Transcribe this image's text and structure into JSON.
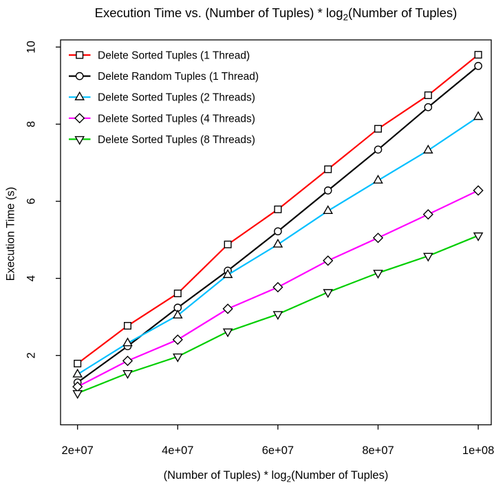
{
  "figure": {
    "title": {
      "pre": "Execution Time vs. (Number of Tuples) * log",
      "sub": "2",
      "post": "(Number of Tuples)"
    },
    "x_axis": {
      "label_pre": "(Number of Tuples) * log",
      "label_sub": "2",
      "label_post": "(Number of Tuples)",
      "tick_labels": [
        "2e+07",
        "4e+07",
        "6e+07",
        "8e+07",
        "1e+08"
      ],
      "tick_values": [
        20000000,
        40000000,
        60000000,
        80000000,
        100000000
      ]
    },
    "y_axis": {
      "label": "Execution Time (s)",
      "tick_labels": [
        "2",
        "4",
        "6",
        "8",
        "10"
      ],
      "tick_values": [
        2,
        4,
        6,
        8,
        10
      ]
    }
  },
  "chart_data": {
    "type": "line",
    "title": "Execution Time vs. (Number of Tuples) * log2(Number of Tuples)",
    "xlabel": "(Number of Tuples) * log2(Number of Tuples)",
    "ylabel": "Execution Time (s)",
    "xlim": [
      20000000,
      100000000
    ],
    "ylim": [
      1.0,
      10.0
    ],
    "grid": false,
    "legend_position": "top-left",
    "x": [
      20000000,
      30000000,
      40000000,
      50000000,
      60000000,
      70000000,
      80000000,
      90000000,
      100000000
    ],
    "series": [
      {
        "name": "Delete Sorted Tuples (1 Thread)",
        "color": "#ff0000",
        "marker": "square",
        "values": [
          1.79,
          2.77,
          3.61,
          4.88,
          5.79,
          6.83,
          7.88,
          8.75,
          9.8
        ]
      },
      {
        "name": "Delete Random Tuples (1 Thread)",
        "color": "#000000",
        "marker": "circle",
        "values": [
          1.3,
          2.24,
          3.24,
          4.2,
          5.22,
          6.28,
          7.34,
          8.44,
          9.51
        ]
      },
      {
        "name": "Delete Sorted Tuples (2 Threads)",
        "color": "#00bfff",
        "marker": "triangle-up",
        "values": [
          1.51,
          2.32,
          3.04,
          4.09,
          4.88,
          5.75,
          6.54,
          7.32,
          8.19
        ]
      },
      {
        "name": "Delete Sorted Tuples (4 Threads)",
        "color": "#ff00ff",
        "marker": "diamond",
        "values": [
          1.19,
          1.86,
          2.41,
          3.21,
          3.77,
          4.46,
          5.05,
          5.66,
          6.28
        ]
      },
      {
        "name": "Delete Sorted Tuples (8 Threads)",
        "color": "#00cd00",
        "marker": "triangle-down",
        "values": [
          1.02,
          1.54,
          1.97,
          2.62,
          3.07,
          3.64,
          4.14,
          4.58,
          5.11
        ]
      }
    ]
  }
}
